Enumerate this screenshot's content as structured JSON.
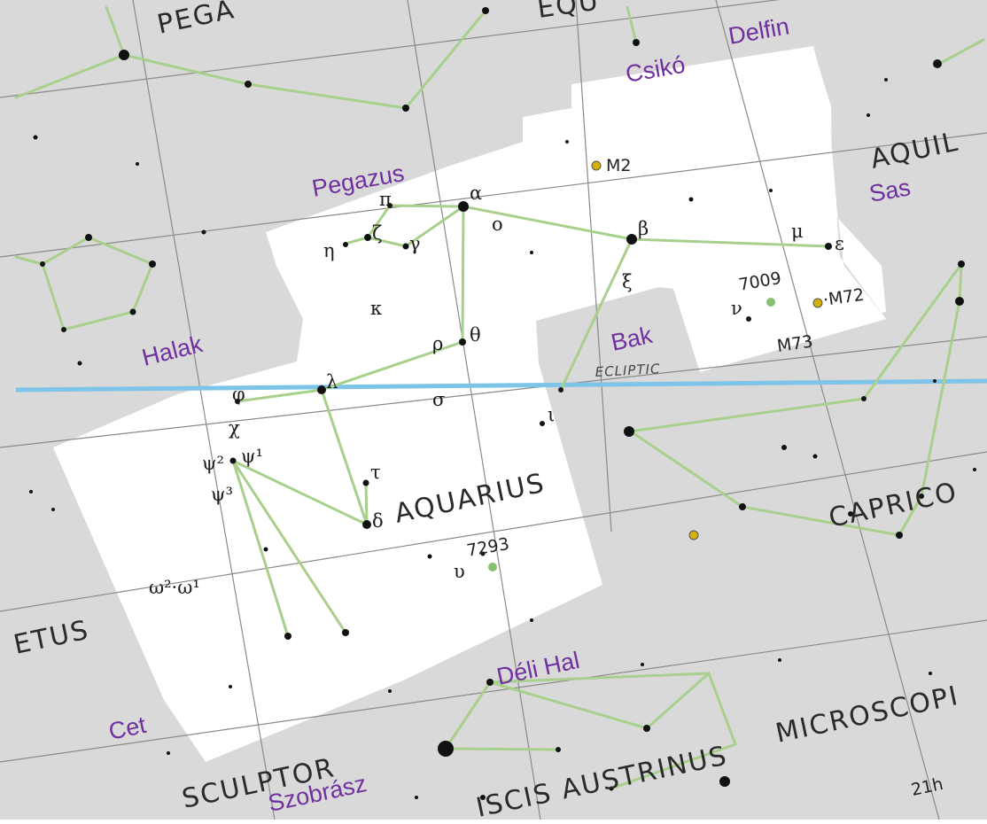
{
  "constellations": {
    "pegasus": "PEGA",
    "equuleus": "EQU",
    "aquila": "AQUIL",
    "aquarius": "AQUARIUS",
    "capricornus": "CAPRICO",
    "cetus": "ETUS",
    "sculptor": "SCULPTOR",
    "piscis_austrinus": "ISCIS AUSTRINUS",
    "microscopium": "MICROSCOPI"
  },
  "hungarian_labels": {
    "csiko": "Csikó",
    "delfin": "Delfin",
    "pegazus": "Pegazus",
    "sas": "Sas",
    "halak": "Halak",
    "bak": "Bak",
    "deli_hal": "Déli Hal",
    "cet": "Cet",
    "szobrasz": "Szobrász"
  },
  "stars": {
    "alpha": "α",
    "beta": "β",
    "eta": "η",
    "zeta": "ζ",
    "pi": "π",
    "gamma": "γ",
    "omicron": "ο",
    "kappa": "κ",
    "xi": "ξ",
    "mu": "μ",
    "epsilon": "ε",
    "nu": "ν",
    "theta": "θ",
    "rho": "ρ",
    "lambda": "λ",
    "sigma": "σ",
    "phi": "φ",
    "chi": "χ",
    "iota": "ι",
    "tau": "τ",
    "delta": "δ",
    "psi2": "ψ²",
    "psi1": "ψ¹",
    "psi3": "ψ³",
    "omega": "ω²·ω¹",
    "upsilon": "υ"
  },
  "objects": {
    "m2": "M2",
    "m72": "·M72",
    "m73": "M73",
    "ngc7009": "7009",
    "ngc7293": "7293"
  },
  "ecliptic_label": "ECLIPTIC",
  "ra_label": "21h",
  "colors": {
    "sky_outside": "#d9d9d9",
    "constellation_area": "#ffffff",
    "constellation_lines": "#a8d08d",
    "ecliptic": "#7ec4e8",
    "grid": "#8a8a8a",
    "hungarian_text": "#7030a0",
    "messier": "#d4b106"
  }
}
